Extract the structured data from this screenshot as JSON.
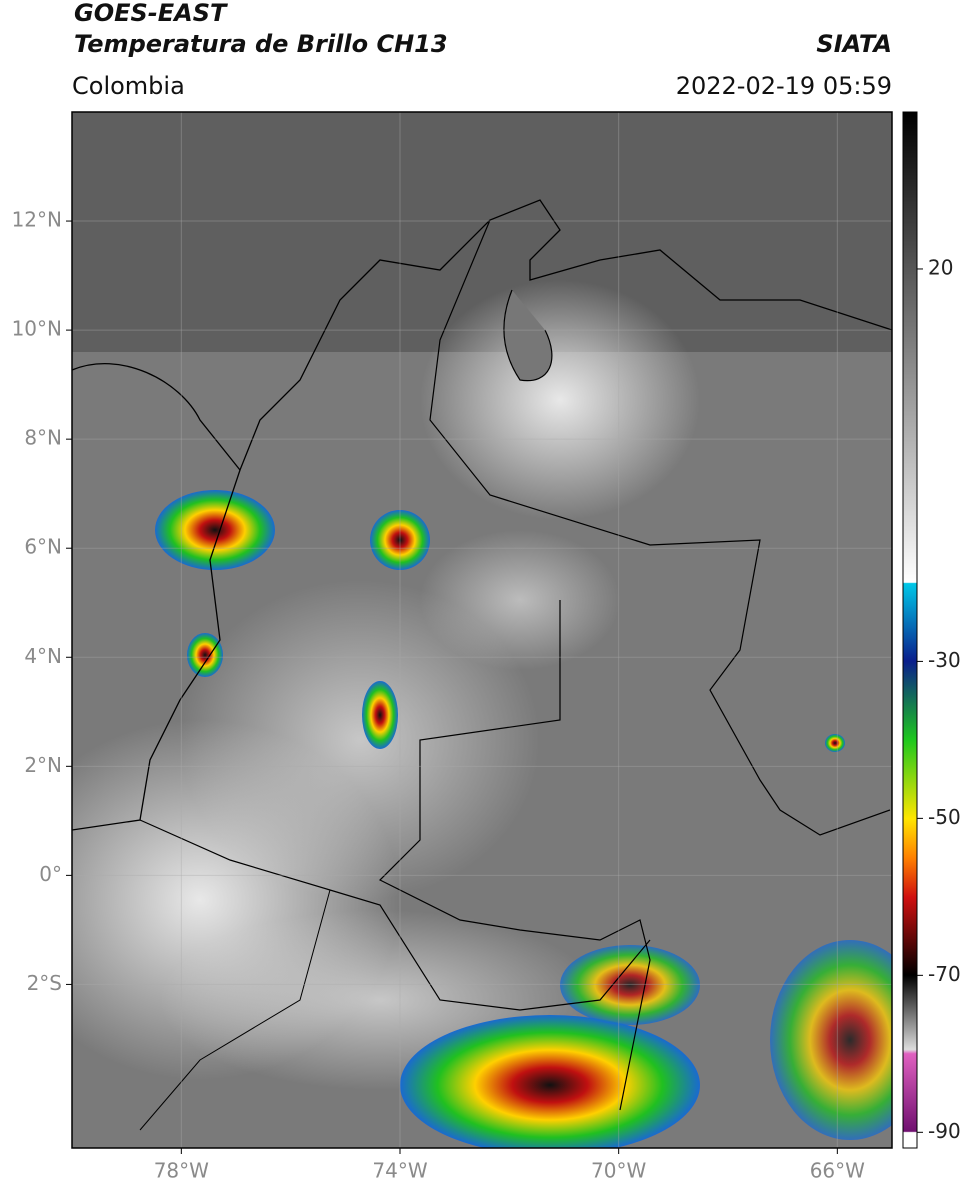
{
  "header": {
    "title": "GOES-EAST",
    "subtitle": "Temperatura de Brillo CH13",
    "source": "SIATA",
    "region": "Colombia",
    "timestamp": "2022-02-19 05:59"
  },
  "map": {
    "lonlim": [
      -80,
      -65
    ],
    "latlim": [
      -5,
      14
    ],
    "lonticks": [
      {
        "value": -78,
        "label": "78°W"
      },
      {
        "value": -74,
        "label": "74°W"
      },
      {
        "value": -70,
        "label": "70°W"
      },
      {
        "value": -66,
        "label": "66°W"
      }
    ],
    "latticks": [
      {
        "value": 12,
        "label": "12°N"
      },
      {
        "value": 10,
        "label": "10°N"
      },
      {
        "value": 8,
        "label": "8°N"
      },
      {
        "value": 6,
        "label": "6°N"
      },
      {
        "value": 4,
        "label": "4°N"
      },
      {
        "value": 2,
        "label": "2°N"
      },
      {
        "value": 0,
        "label": "0°"
      },
      {
        "value": -2,
        "label": "2°S"
      }
    ]
  },
  "colorbar": {
    "lim": [
      -92,
      40
    ],
    "ticks": [
      20,
      -30,
      -50,
      -70,
      -90
    ]
  }
}
